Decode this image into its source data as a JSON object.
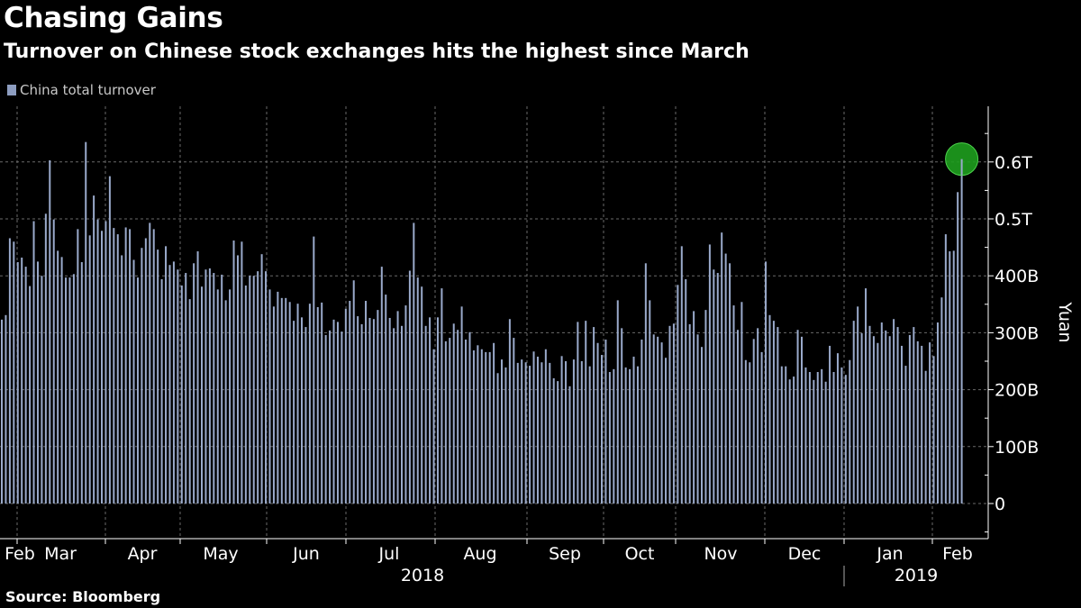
{
  "title": "Chasing Gains",
  "subtitle": "Turnover on Chinese stock exchanges hits the highest since March",
  "source": "Source: Bloomberg",
  "chart_data": {
    "type": "bar",
    "title": "Chasing Gains",
    "subtitle": "Turnover on Chinese stock exchanges hits the highest since March",
    "ylabel": "Yuan",
    "ylim": [
      -60,
      700
    ],
    "y_ticks": [
      {
        "value": 0,
        "label": "0"
      },
      {
        "value": 100,
        "label": "100B"
      },
      {
        "value": 200,
        "label": "200B"
      },
      {
        "value": 300,
        "label": "300B"
      },
      {
        "value": 400,
        "label": "400B"
      },
      {
        "value": 500,
        "label": "0.5T"
      },
      {
        "value": 600,
        "label": "0.6T"
      }
    ],
    "x_month_labels": [
      "Feb",
      "Mar",
      "Apr",
      "May",
      "Jun",
      "Jul",
      "Aug",
      "Sep",
      "Oct",
      "Nov",
      "Dec",
      "Jan",
      "Feb"
    ],
    "x_year_labels": [
      "2018",
      "2019"
    ],
    "grid": true,
    "legend_position": "top-left",
    "series": [
      {
        "name": "China total turnover",
        "color": "#9aaacb",
        "unit": "billion yuan",
        "values": [
          323,
          331,
          466,
          460,
          424,
          432,
          416,
          382,
          496,
          425,
          400,
          509,
          603,
          499,
          444,
          433,
          397,
          397,
          403,
          482,
          424,
          635,
          471,
          541,
          499,
          479,
          496,
          575,
          484,
          473,
          436,
          485,
          482,
          428,
          397,
          449,
          466,
          493,
          482,
          446,
          394,
          452,
          419,
          425,
          411,
          383,
          405,
          359,
          422,
          443,
          381,
          411,
          413,
          405,
          376,
          402,
          357,
          376,
          462,
          436,
          460,
          383,
          400,
          400,
          408,
          438,
          408,
          376,
          346,
          372,
          361,
          361,
          354,
          321,
          351,
          327,
          310,
          351,
          469,
          345,
          353,
          296,
          304,
          323,
          319,
          302,
          342,
          356,
          392,
          329,
          315,
          356,
          326,
          324,
          340,
          416,
          367,
          326,
          308,
          338,
          312,
          348,
          409,
          493,
          397,
          381,
          312,
          327,
          271,
          327,
          378,
          285,
          291,
          316,
          305,
          346,
          288,
          301,
          269,
          278,
          271,
          266,
          266,
          282,
          229,
          253,
          239,
          324,
          291,
          247,
          253,
          248,
          242,
          267,
          258,
          248,
          271,
          247,
          220,
          215,
          259,
          250,
          206,
          253,
          319,
          250,
          321,
          241,
          310,
          282,
          261,
          288,
          231,
          236,
          357,
          308,
          239,
          236,
          258,
          241,
          288,
          422,
          357,
          297,
          293,
          283,
          256,
          312,
          316,
          384,
          452,
          394,
          315,
          338,
          297,
          275,
          340,
          455,
          411,
          405,
          476,
          439,
          422,
          348,
          305,
          354,
          252,
          248,
          289,
          308,
          266,
          425,
          331,
          321,
          310,
          241,
          241,
          218,
          223,
          305,
          293,
          239,
          231,
          217,
          231,
          236,
          214,
          277,
          231,
          264,
          239,
          226,
          252,
          321,
          346,
          299,
          378,
          312,
          294,
          282,
          318,
          304,
          294,
          324,
          310,
          277,
          242,
          296,
          310,
          285,
          277,
          233,
          283,
          259,
          318,
          362,
          473,
          443,
          444,
          547,
          605
        ]
      }
    ],
    "highlight": {
      "point": "last",
      "color": "#1e9e1e"
    }
  }
}
